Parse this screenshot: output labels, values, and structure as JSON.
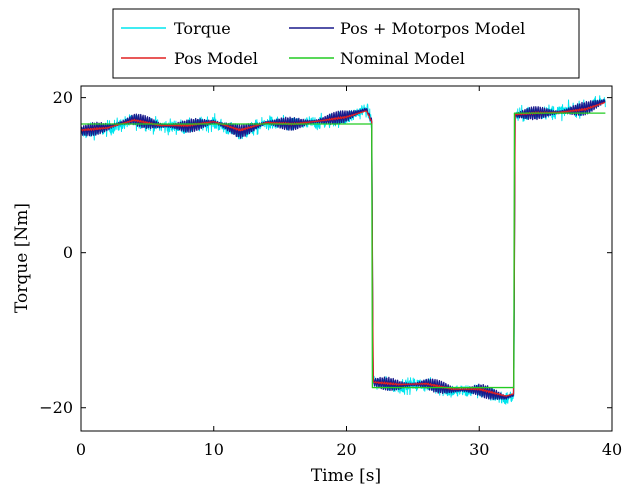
{
  "chart_data": {
    "type": "line",
    "xlabel": "Time [s]",
    "ylabel": "Torque [Nm]",
    "xlim": [
      0,
      40
    ],
    "ylim": [
      -23,
      21.5
    ],
    "xticks": [
      0,
      10,
      20,
      30,
      40
    ],
    "yticks": [
      -20,
      0,
      20
    ],
    "ytick_labels": [
      "−20",
      "0",
      "20"
    ],
    "grid": false,
    "legend_position": "top-center, above plot",
    "series": [
      {
        "name": "Torque",
        "color": "#00e5ee",
        "style": "noisy measured signal",
        "points": [
          [
            0,
            15.5
          ],
          [
            2,
            16.0
          ],
          [
            4,
            17.0
          ],
          [
            6,
            16.3
          ],
          [
            8,
            16.2
          ],
          [
            10,
            16.8
          ],
          [
            12,
            15.3
          ],
          [
            14,
            16.7
          ],
          [
            16,
            16.5
          ],
          [
            18,
            16.8
          ],
          [
            20,
            17.4
          ],
          [
            21.5,
            18.6
          ],
          [
            21.9,
            16.8
          ],
          [
            22.0,
            -16.8
          ],
          [
            24,
            -17.2
          ],
          [
            26,
            -17.0
          ],
          [
            28,
            -17.9
          ],
          [
            30,
            -17.8
          ],
          [
            32,
            -18.9
          ],
          [
            32.6,
            -18.5
          ],
          [
            32.7,
            17.6
          ],
          [
            34,
            18.1
          ],
          [
            36,
            18.2
          ],
          [
            38,
            18.6
          ],
          [
            39.5,
            19.8
          ]
        ]
      },
      {
        "name": "Pos + Motorpos Model",
        "color": "#1a1a8c",
        "style": "oscillating model output",
        "points": [
          [
            0,
            15.7
          ],
          [
            2,
            16.2
          ],
          [
            4,
            17.2
          ],
          [
            6,
            16.4
          ],
          [
            8,
            16.3
          ],
          [
            10,
            16.9
          ],
          [
            12,
            15.6
          ],
          [
            14,
            16.8
          ],
          [
            16,
            16.6
          ],
          [
            18,
            17.0
          ],
          [
            20,
            17.6
          ],
          [
            21.5,
            18.5
          ],
          [
            21.9,
            16.9
          ],
          [
            22.0,
            -16.7
          ],
          [
            24,
            -17.1
          ],
          [
            26,
            -16.9
          ],
          [
            28,
            -17.7
          ],
          [
            30,
            -17.7
          ],
          [
            32,
            -18.7
          ],
          [
            32.6,
            -18.3
          ],
          [
            32.7,
            17.7
          ],
          [
            34,
            18.0
          ],
          [
            36,
            18.1
          ],
          [
            38,
            18.6
          ],
          [
            39.5,
            19.6
          ]
        ]
      },
      {
        "name": "Pos Model",
        "color": "#e02020",
        "style": "smooth model output",
        "points": [
          [
            0,
            15.8
          ],
          [
            2,
            16.1
          ],
          [
            4,
            17.1
          ],
          [
            6,
            16.4
          ],
          [
            8,
            16.4
          ],
          [
            10,
            16.9
          ],
          [
            12,
            15.8
          ],
          [
            14,
            16.8
          ],
          [
            16,
            16.6
          ],
          [
            18,
            17.0
          ],
          [
            20,
            17.5
          ],
          [
            21.5,
            18.3
          ],
          [
            21.9,
            16.9
          ],
          [
            22.0,
            -16.7
          ],
          [
            24,
            -17.0
          ],
          [
            26,
            -16.9
          ],
          [
            28,
            -17.6
          ],
          [
            30,
            -17.6
          ],
          [
            32,
            -18.5
          ],
          [
            32.6,
            -18.2
          ],
          [
            32.7,
            17.8
          ],
          [
            34,
            18.0
          ],
          [
            36,
            18.1
          ],
          [
            38,
            18.5
          ],
          [
            39.5,
            19.4
          ]
        ]
      },
      {
        "name": "Nominal Model",
        "color": "#22cc22",
        "style": "piecewise constant",
        "points": [
          [
            0,
            16.6
          ],
          [
            21.9,
            16.6
          ],
          [
            21.95,
            -17.4
          ],
          [
            32.6,
            -17.4
          ],
          [
            32.65,
            18.0
          ],
          [
            39.5,
            18.0
          ]
        ]
      }
    ]
  }
}
